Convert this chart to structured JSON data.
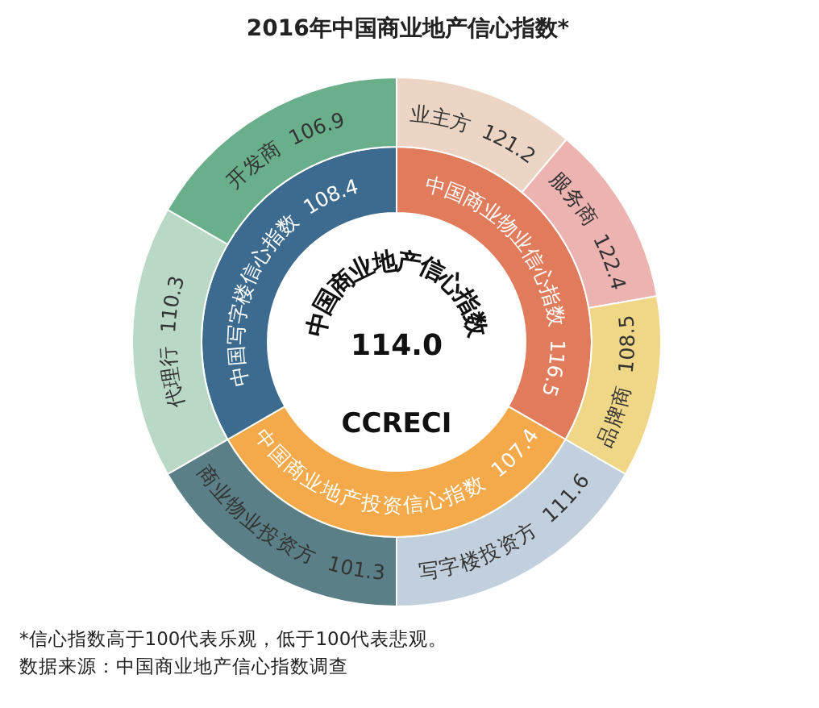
{
  "chart_data": {
    "type": "other",
    "title": "2016年中国商业地产信心指数*",
    "value_labels": [
      "114.0",
      "116.5",
      "107.4",
      "108.4",
      "121.2",
      "122.4",
      "108.5",
      "111.6",
      "101.3",
      "110.3",
      "106.9"
    ],
    "categories": [
      "中国商业地产信心指数",
      "中国商业物业信心指数",
      "中国商业地产投资信心指数",
      "中国写字楼信心指数",
      "业主方",
      "服务商",
      "品牌商",
      "写字楼投资方",
      "商业物业投资方",
      "代理行",
      "开发商"
    ],
    "values": [
      114.0,
      116.5,
      107.4,
      108.4,
      121.2,
      122.4,
      108.5,
      111.6,
      101.3,
      110.3,
      106.9
    ],
    "colors": [
      "#ffffff",
      "#e07c5c",
      "#f4a94a",
      "#3d6b8f",
      "#ecd5c4",
      "#ecb3b0",
      "#f0d788",
      "#c2cfdc",
      "#5b7f86",
      "#b9d8c5",
      "#6aaf8c"
    ],
    "annotations": [
      "CCRECI",
      "*信心指数高于100代表乐观，低于100代表悲观。",
      "数据来源：中国商业地产信心指数调查"
    ]
  }
}
